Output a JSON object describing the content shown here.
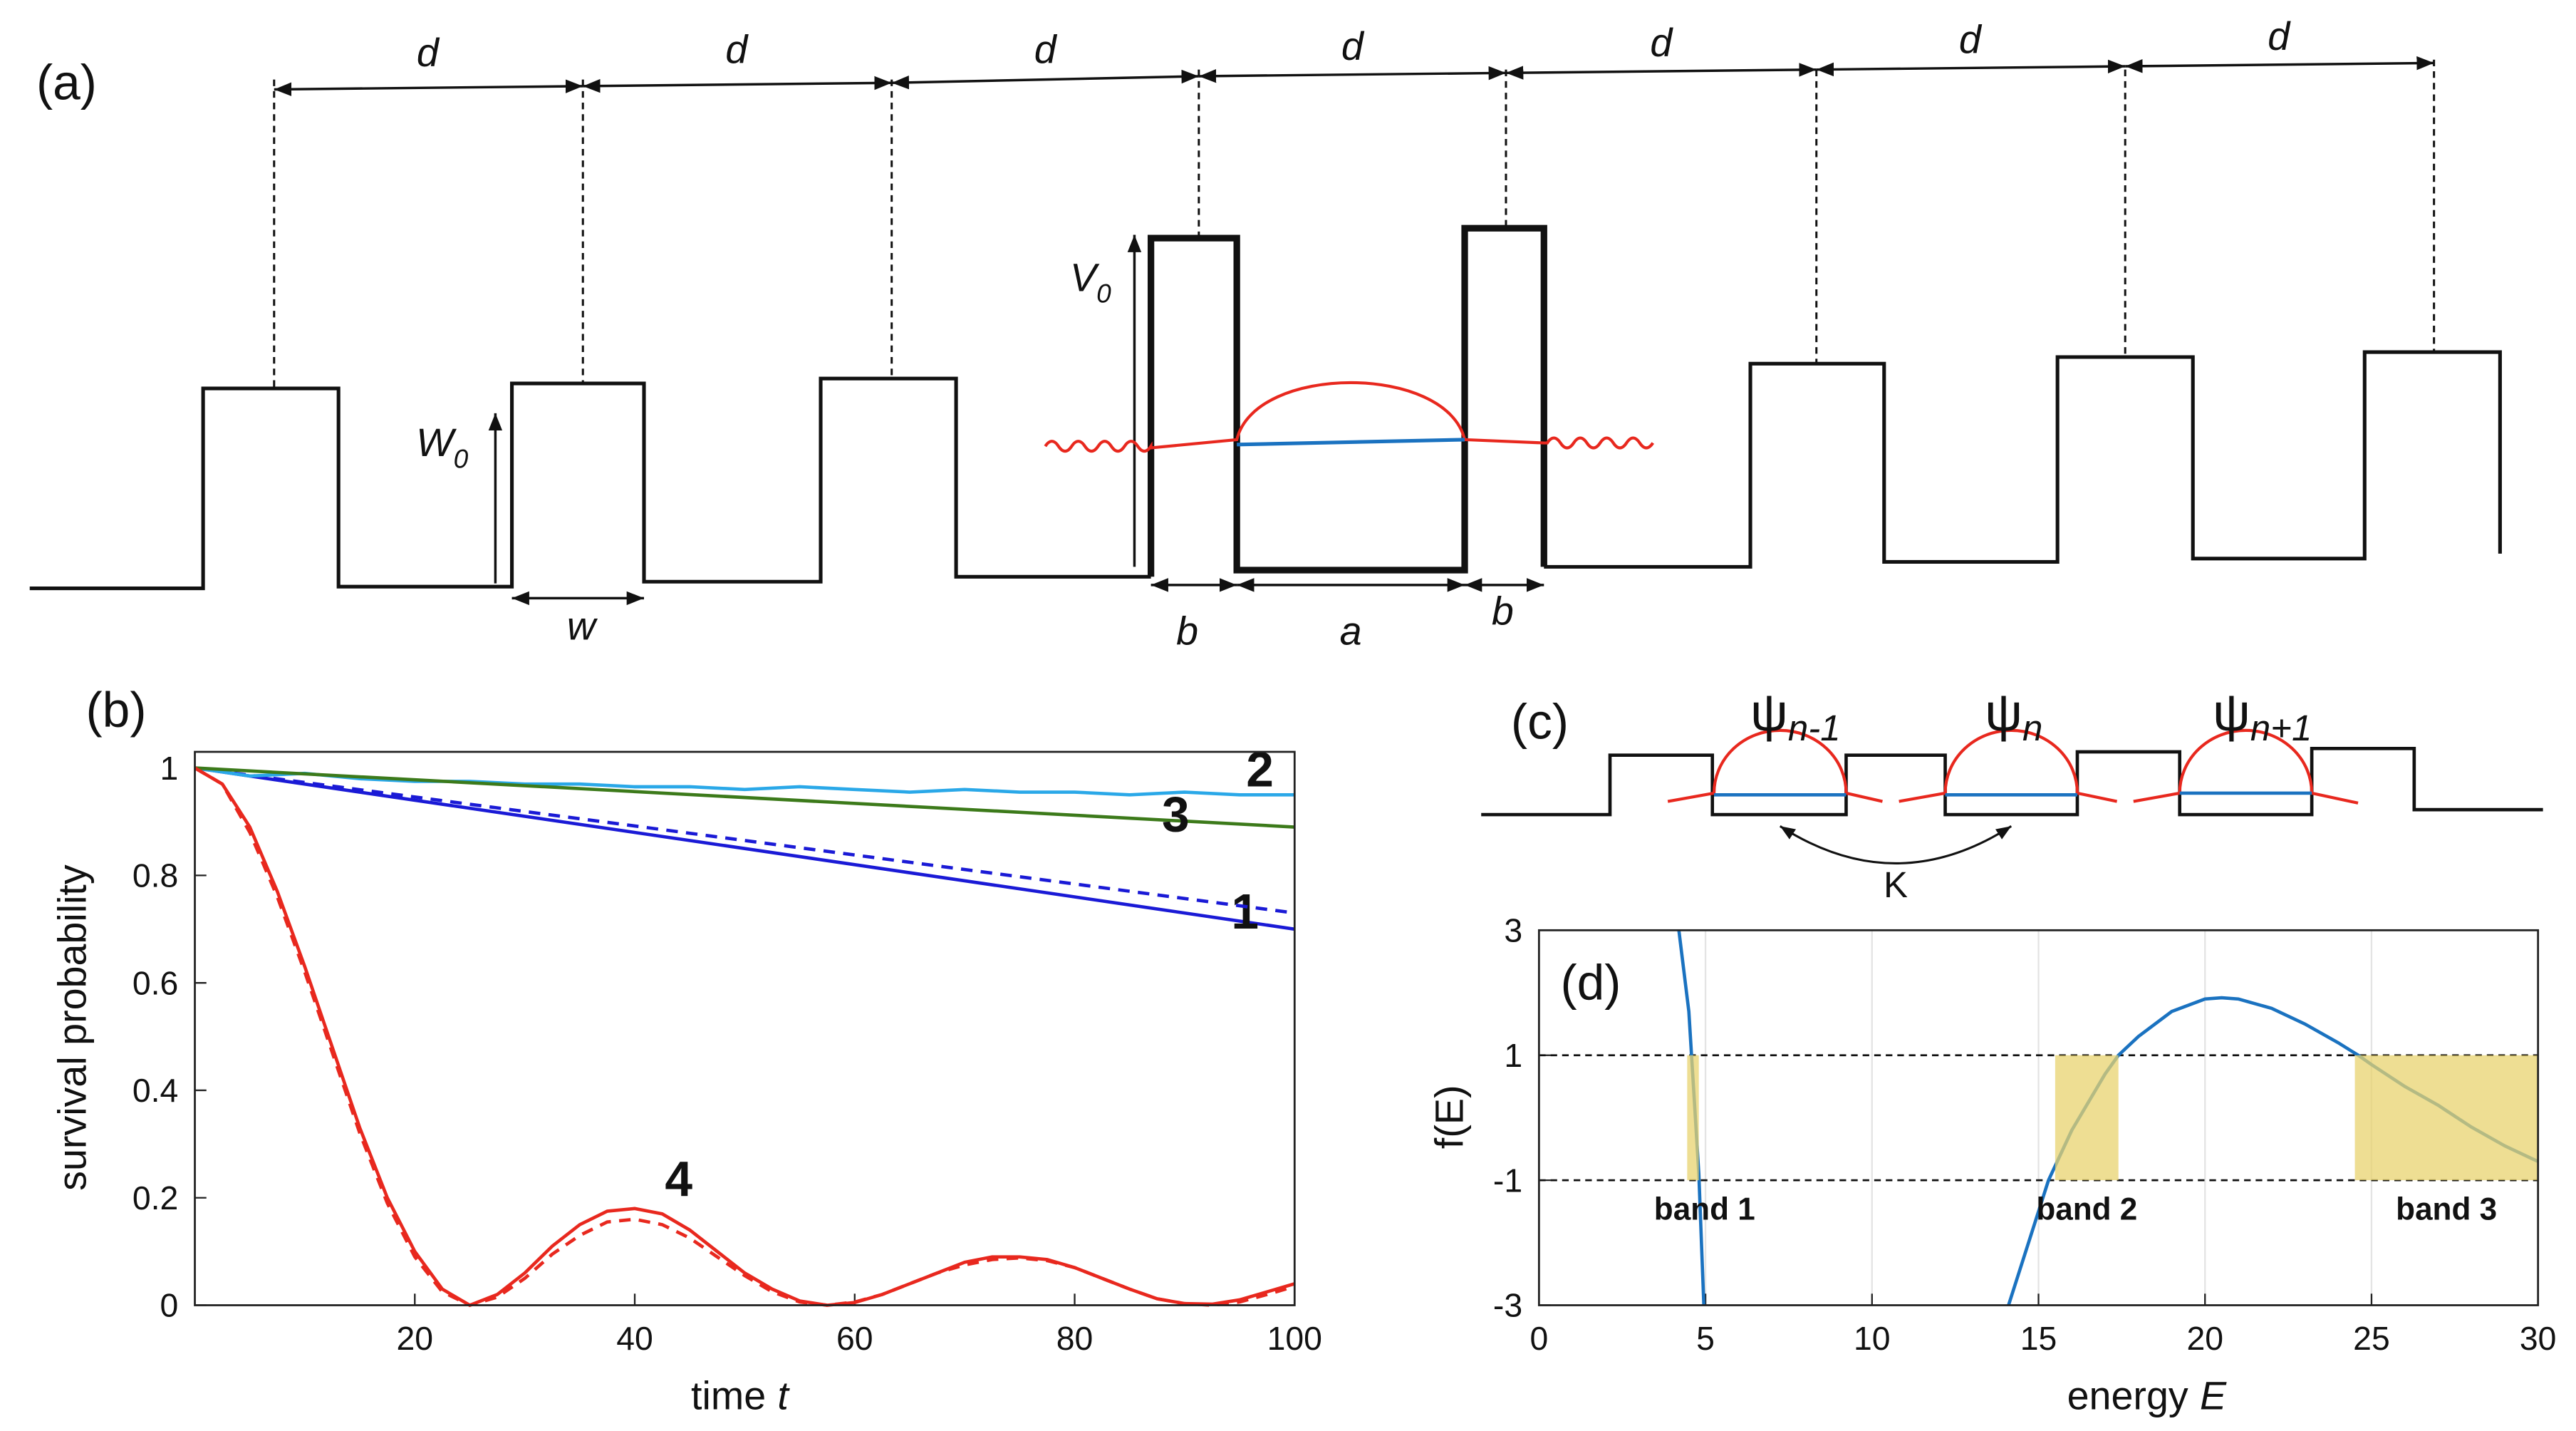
{
  "figure": {
    "panel_a": {
      "label": "(a)",
      "period": "d",
      "barrier_height": {
        "symbol": "W",
        "sub": "0"
      },
      "barrier_width": "w",
      "defect_height": {
        "symbol": "V",
        "sub": "0"
      },
      "defect_barrier": "b",
      "defect_well": "a"
    },
    "panel_c": {
      "label": "(c)",
      "states": [
        {
          "symbol": "ψ",
          "sub": "n-1"
        },
        {
          "symbol": "ψ",
          "sub": "n"
        },
        {
          "symbol": "ψ",
          "sub": "n+1"
        }
      ],
      "coupling": "K"
    }
  },
  "chart_data": [
    {
      "type": "line",
      "label": "(b)",
      "xlabel": {
        "text": "time",
        "symbol": "t"
      },
      "ylabel": "survival probability",
      "xlim": [
        0,
        100
      ],
      "ylim": [
        0,
        1.03
      ],
      "xticks": [
        20,
        40,
        60,
        80,
        100
      ],
      "yticks": [
        0,
        0.2,
        0.4,
        0.6,
        0.8,
        1
      ],
      "series": [
        {
          "name": "1",
          "color": "#1a1ad6",
          "dash": false,
          "x": [
            0,
            100
          ],
          "values": [
            1,
            0.7
          ]
        },
        {
          "color": "#1a1ad6",
          "dash": true,
          "x": [
            0,
            100
          ],
          "values": [
            1,
            0.73
          ]
        },
        {
          "name": "2",
          "color": "#2aa8e8",
          "dash": false,
          "x": [
            0,
            5,
            10,
            15,
            20,
            25,
            30,
            35,
            40,
            45,
            50,
            55,
            60,
            65,
            70,
            75,
            80,
            85,
            90,
            95,
            100
          ],
          "values": [
            1.0,
            0.985,
            0.99,
            0.98,
            0.975,
            0.975,
            0.97,
            0.97,
            0.965,
            0.965,
            0.96,
            0.965,
            0.96,
            0.955,
            0.96,
            0.955,
            0.955,
            0.95,
            0.955,
            0.95,
            0.95
          ]
        },
        {
          "name": "3",
          "color": "#3c7a1a",
          "dash": false,
          "x": [
            0,
            100
          ],
          "values": [
            1,
            0.89
          ]
        },
        {
          "name": "4",
          "color": "#e8281e",
          "dash": false,
          "x": [
            0,
            2.5,
            5,
            7.5,
            10,
            12.5,
            15,
            17.5,
            20,
            22.5,
            25,
            27.5,
            30,
            32.5,
            35,
            37.5,
            40,
            42.5,
            45,
            47.5,
            50,
            52.5,
            55,
            57.5,
            60,
            62.5,
            65,
            67.5,
            70,
            72.5,
            75,
            77.5,
            80,
            82.5,
            85,
            87.5,
            90,
            92.5,
            95,
            97.5,
            100
          ],
          "values": [
            1.0,
            0.97,
            0.89,
            0.77,
            0.63,
            0.48,
            0.33,
            0.2,
            0.1,
            0.03,
            0.0,
            0.02,
            0.06,
            0.11,
            0.15,
            0.175,
            0.18,
            0.17,
            0.14,
            0.1,
            0.06,
            0.03,
            0.008,
            0.0,
            0.005,
            0.02,
            0.04,
            0.06,
            0.08,
            0.09,
            0.09,
            0.085,
            0.07,
            0.05,
            0.03,
            0.012,
            0.003,
            0.002,
            0.01,
            0.025,
            0.04
          ]
        },
        {
          "color": "#e8281e",
          "dash": true,
          "x": [
            0,
            2.5,
            5,
            7.5,
            10,
            12.5,
            15,
            17.5,
            20,
            22.5,
            25,
            27.5,
            30,
            32.5,
            35,
            37.5,
            40,
            42.5,
            45,
            47.5,
            50,
            52.5,
            55,
            57.5,
            60,
            62.5,
            65,
            67.5,
            70,
            72.5,
            75,
            77.5,
            80,
            82.5,
            85,
            87.5,
            90,
            92.5,
            95,
            97.5,
            100
          ],
          "values": [
            1.0,
            0.97,
            0.88,
            0.76,
            0.62,
            0.47,
            0.32,
            0.19,
            0.09,
            0.025,
            0.0,
            0.015,
            0.05,
            0.095,
            0.13,
            0.155,
            0.16,
            0.15,
            0.125,
            0.09,
            0.055,
            0.025,
            0.006,
            0.0,
            0.006,
            0.02,
            0.04,
            0.06,
            0.075,
            0.085,
            0.088,
            0.083,
            0.07,
            0.05,
            0.03,
            0.012,
            0.003,
            0.0,
            0.006,
            0.02,
            0.035
          ]
        }
      ]
    },
    {
      "type": "line",
      "label": "(d)",
      "xlabel": {
        "text": "energy",
        "symbol": "E"
      },
      "ylabel": "f(E)",
      "xlim": [
        0,
        30
      ],
      "ylim": [
        -3,
        3
      ],
      "xticks": [
        0,
        5,
        10,
        15,
        20,
        25,
        30
      ],
      "yticks": [
        -3,
        -1,
        1,
        3
      ],
      "grid": "x",
      "hlines": [
        -1,
        1
      ],
      "band_color": "#e8d36f",
      "bands": [
        {
          "label": "band 1",
          "range": [
            4.45,
            4.8
          ]
        },
        {
          "label": "band 2",
          "range": [
            15.5,
            17.4
          ]
        },
        {
          "label": "band 3",
          "range": [
            24.5,
            30
          ]
        }
      ],
      "series": [
        {
          "color": "#1a72c0",
          "dash": false,
          "x": [
            4.2,
            4.5,
            4.8,
            4.95,
            null,
            14.1,
            15.3,
            16,
            17,
            17.4,
            18,
            19,
            20,
            20.5,
            21,
            22,
            23,
            24,
            24.6,
            25,
            26,
            27,
            28,
            29,
            30
          ],
          "values": [
            3,
            1.7,
            -0.9,
            -3,
            null,
            -3,
            -1,
            -0.2,
            0.7,
            1.0,
            1.3,
            1.7,
            1.9,
            1.92,
            1.9,
            1.75,
            1.5,
            1.2,
            1.0,
            0.85,
            0.5,
            0.2,
            -0.15,
            -0.45,
            -0.7
          ]
        }
      ]
    }
  ]
}
